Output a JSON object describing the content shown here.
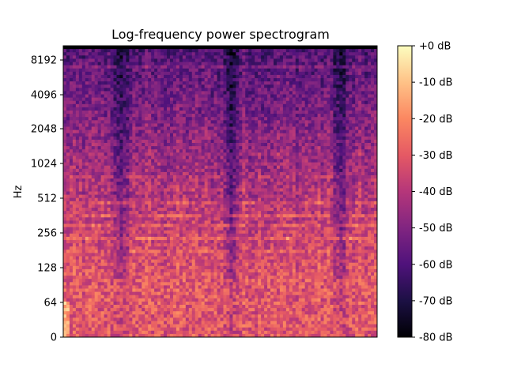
{
  "chart_data": {
    "type": "heatmap",
    "title": "Log-frequency power spectrogram",
    "xlabel": "",
    "ylabel": "Hz",
    "y_scale": "log2",
    "y_ticks": [
      "0",
      "64",
      "128",
      "256",
      "512",
      "1024",
      "2048",
      "4096",
      "8192"
    ],
    "x_ticks": [],
    "colormap": "magma",
    "colorbar": {
      "range_db": [
        -80,
        0
      ],
      "ticks": [
        "+0 dB",
        "-10 dB",
        "-20 dB",
        "-30 dB",
        "-40 dB",
        "-50 dB",
        "-60 dB",
        "-70 dB",
        "-80 dB"
      ]
    },
    "features": {
      "low_band_level_db": -20,
      "high_band_level_db": -60,
      "harmonic_lines_hz": [
        1200,
        800,
        620,
        470,
        360,
        300,
        230,
        180
      ],
      "dark_vertical_gaps": [
        "~0.18",
        "~0.53",
        "~0.88"
      ]
    }
  },
  "colors": {
    "magma": [
      "#000004",
      "#1c1044",
      "#4f127b",
      "#812581",
      "#b5367a",
      "#e55964",
      "#fb8761",
      "#fec287",
      "#fcfdbf"
    ]
  }
}
